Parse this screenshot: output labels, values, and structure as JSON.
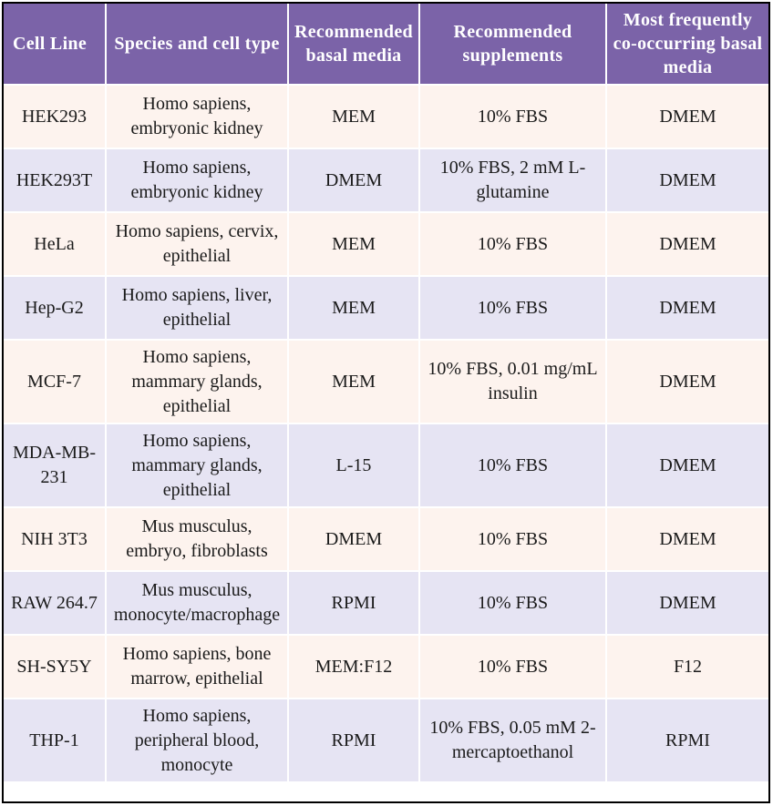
{
  "table": {
    "headers": [
      "Cell Line",
      "Species and cell type",
      "Recommended basal media",
      "Recommended supplements",
      "Most frequently co-occurring basal media"
    ],
    "rows": [
      {
        "cell_line": "HEK293",
        "species": "Homo sapiens, embryonic kidney",
        "basal": "MEM",
        "supplements": "10% FBS",
        "cooccurring": "DMEM"
      },
      {
        "cell_line": "HEK293T",
        "species": "Homo sapiens, embryonic kidney",
        "basal": "DMEM",
        "supplements": "10% FBS, 2 mM L-glutamine",
        "cooccurring": "DMEM"
      },
      {
        "cell_line": "HeLa",
        "species": "Homo sapiens, cervix, epithelial",
        "basal": "MEM",
        "supplements": "10% FBS",
        "cooccurring": "DMEM"
      },
      {
        "cell_line": "Hep-G2",
        "species": "Homo sapiens, liver, epithelial",
        "basal": "MEM",
        "supplements": "10% FBS",
        "cooccurring": "DMEM"
      },
      {
        "cell_line": "MCF-7",
        "species": "Homo sapiens, mammary glands, epithelial",
        "basal": "MEM",
        "supplements": "10% FBS, 0.01 mg/mL insulin",
        "cooccurring": "DMEM"
      },
      {
        "cell_line": "MDA-MB-231",
        "species": "Homo sapiens, mammary glands, epithelial",
        "basal": "L-15",
        "supplements": "10% FBS",
        "cooccurring": "DMEM"
      },
      {
        "cell_line": "NIH 3T3",
        "species": "Mus musculus, embryo, fibroblasts",
        "basal": "DMEM",
        "supplements": "10% FBS",
        "cooccurring": "DMEM"
      },
      {
        "cell_line": "RAW 264.7",
        "species": "Mus musculus, monocyte/macrophage",
        "basal": "RPMI",
        "supplements": "10% FBS",
        "cooccurring": "DMEM"
      },
      {
        "cell_line": "SH-SY5Y",
        "species": "Homo sapiens, bone marrow, epithelial",
        "basal": "MEM:F12",
        "supplements": "10% FBS",
        "cooccurring": "F12"
      },
      {
        "cell_line": "THP-1",
        "species": "Homo sapiens, peripheral blood, monocyte",
        "basal": "RPMI",
        "supplements": "10% FBS, 0.05 mM 2-mercaptoethanol",
        "cooccurring": "RPMI"
      }
    ]
  },
  "colors": {
    "header_bg": "#7b63a8",
    "row_odd_bg": "#fdf3ee",
    "row_even_bg": "#e6e4f3"
  }
}
